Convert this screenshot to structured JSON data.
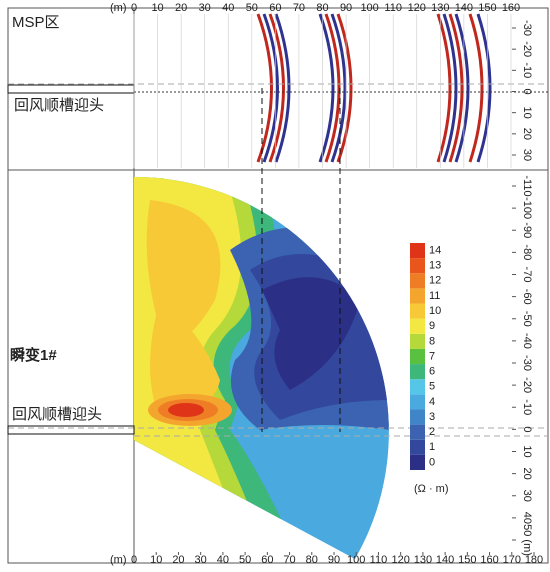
{
  "chart_data": [
    {
      "type": "survey-profile",
      "title": "MSP区",
      "annotation": "回风顺槽迎头",
      "xlabel": "(m)",
      "xlim": [
        0,
        160
      ],
      "xticks": [
        0,
        10,
        20,
        30,
        40,
        50,
        60,
        70,
        80,
        90,
        100,
        110,
        120,
        130,
        140,
        150,
        160
      ],
      "ylim": [
        -35,
        35
      ],
      "yticks": [
        -30,
        -20,
        -10,
        0,
        10,
        20,
        30
      ]
    },
    {
      "type": "contour",
      "title": "瞬变1#",
      "annotation": "回风顺槽迎头",
      "xlabel": "(m)",
      "xlim": [
        0,
        180
      ],
      "xticks": [
        0,
        10,
        20,
        30,
        40,
        50,
        60,
        70,
        80,
        90,
        100,
        110,
        120,
        130,
        140,
        150,
        160,
        170,
        180
      ],
      "ylim": [
        -115,
        50
      ],
      "yticks": [
        -110,
        -100,
        -90,
        -80,
        -70,
        -60,
        -50,
        -40,
        -30,
        -20,
        -10,
        0,
        10,
        20,
        30,
        40,
        {
          "value": 50,
          "label": "50 (m)"
        }
      ],
      "colorbar": {
        "ticks": [
          0,
          1,
          2,
          3,
          4,
          5,
          6,
          7,
          8,
          9,
          10,
          11,
          12,
          13,
          14
        ],
        "unit": "(Ω · m)",
        "colors": [
          "#2b2f86",
          "#33479c",
          "#3b63b2",
          "#3f85c8",
          "#4aa9de",
          "#56c6e8",
          "#3db77a",
          "#59c13f",
          "#b5d83a",
          "#f3e842",
          "#f7c936",
          "#f4a52d",
          "#ef7d25",
          "#e8561c",
          "#e03418"
        ]
      }
    }
  ]
}
